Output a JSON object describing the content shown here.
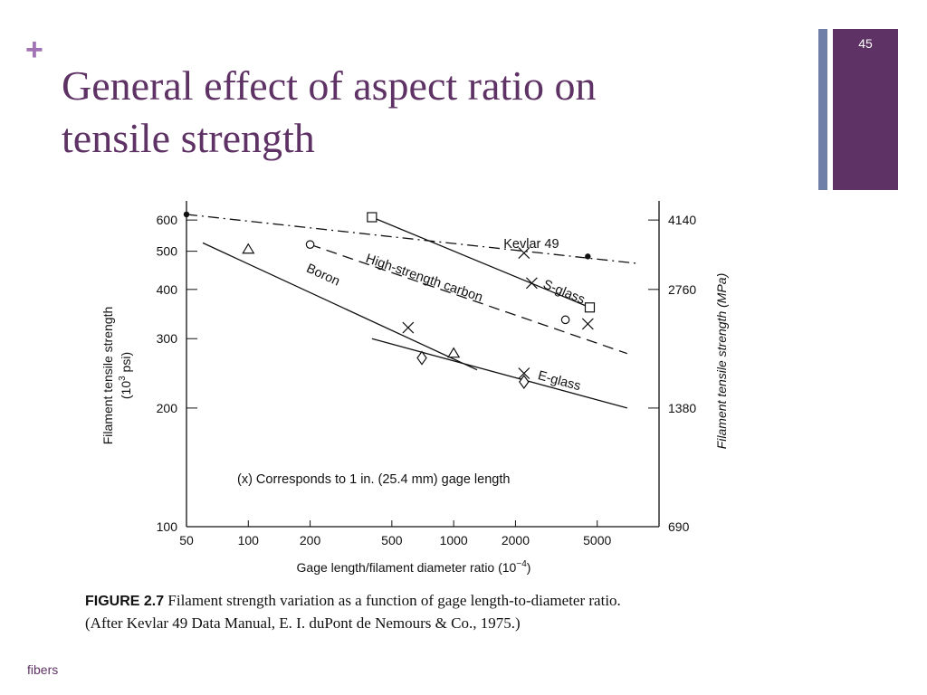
{
  "slide": {
    "plus": "+",
    "title_line1": "General effect of aspect ratio on",
    "title_line2": "tensile strength",
    "page_number": "45",
    "footer": "fibers",
    "accent_color": "#5e3264",
    "plus_color": "#a173b4",
    "side_bar_color": "#6f7fa8"
  },
  "caption": {
    "figure_label": "FIGURE 2.7",
    "line1_text": "Filament strength variation as a function of gage length-to-diameter ratio.",
    "line2_text": "(After Kevlar 49 Data Manual, E. I. duPont de Nemours & Co., 1975.)"
  },
  "chart_data": {
    "type": "line",
    "xscale": "log",
    "yscale": "log",
    "xlim": [
      50,
      10000
    ],
    "ylim": [
      100,
      650
    ],
    "xlabel": "Gage length/filament diameter ratio (10",
    "xlabel_exponent": "−4",
    "xlabel_close": ")",
    "ylabel_left_line1": "Filament tensile strength",
    "ylabel_left_line2": "(10",
    "ylabel_left_exponent": "3",
    "ylabel_left_end": " psi)",
    "ylabel_right": "Filament tensile strength (MPa)",
    "x_ticks": [
      {
        "value": 50,
        "label": "50"
      },
      {
        "value": 100,
        "label": "100"
      },
      {
        "value": 200,
        "label": "200"
      },
      {
        "value": 500,
        "label": "500"
      },
      {
        "value": 1000,
        "label": "1000"
      },
      {
        "value": 2000,
        "label": "2000"
      },
      {
        "value": 5000,
        "label": "5000"
      }
    ],
    "y_ticks_left": [
      {
        "value": 600,
        "label": "600"
      },
      {
        "value": 500,
        "label": "500"
      },
      {
        "value": 400,
        "label": "400"
      },
      {
        "value": 300,
        "label": "300"
      },
      {
        "value": 200,
        "label": "200"
      },
      {
        "value": 100,
        "label": "100"
      }
    ],
    "y_ticks_right": [
      {
        "value": 600,
        "label": "4140"
      },
      {
        "value": 400,
        "label": "2760"
      },
      {
        "value": 200,
        "label": "1380"
      },
      {
        "value": 100,
        "label": "690"
      }
    ],
    "note": "(x) Corresponds to 1 in. (25.4 mm) gage length",
    "series": [
      {
        "name": "Kevlar 49",
        "dash": "dash-dot",
        "marker": "dot",
        "line": [
          [
            50,
            620
          ],
          [
            8000,
            465
          ]
        ],
        "points": [
          [
            50,
            620
          ],
          [
            4500,
            485
          ]
        ],
        "gage_point": [
          2200,
          495
        ],
        "label_at": [
          1750,
          510
        ]
      },
      {
        "name": "S-glass",
        "dash": "solid",
        "marker": "square",
        "line": [
          [
            400,
            610
          ],
          [
            4600,
            360
          ]
        ],
        "points": [
          [
            400,
            610
          ],
          [
            4600,
            360
          ]
        ],
        "gage_point": [
          2400,
          415
        ],
        "label_at": [
          2700,
          405
        ]
      },
      {
        "name": "High-strength carbon",
        "dash": "dashed",
        "marker": "circle",
        "line": [
          [
            200,
            520
          ],
          [
            7000,
            275
          ]
        ],
        "points": [
          [
            200,
            520
          ],
          [
            3500,
            335
          ]
        ],
        "gage_point": [
          4500,
          327
        ],
        "label_at": [
          370,
          470
        ]
      },
      {
        "name": "Boron",
        "dash": "solid",
        "marker": "triangle",
        "line": [
          [
            60,
            525
          ],
          [
            1300,
            250
          ]
        ],
        "points": [
          [
            100,
            505
          ],
          [
            1000,
            275
          ]
        ],
        "gage_point": [
          600,
          320
        ],
        "label_at": [
          190,
          445
        ]
      },
      {
        "name": "E-glass",
        "dash": "solid",
        "marker": "diamond",
        "line": [
          [
            400,
            300
          ],
          [
            7000,
            200
          ]
        ],
        "points": [
          [
            700,
            268
          ],
          [
            2200,
            233
          ]
        ],
        "gage_point": [
          2200,
          245
        ],
        "label_at": [
          2550,
          237
        ]
      }
    ]
  }
}
